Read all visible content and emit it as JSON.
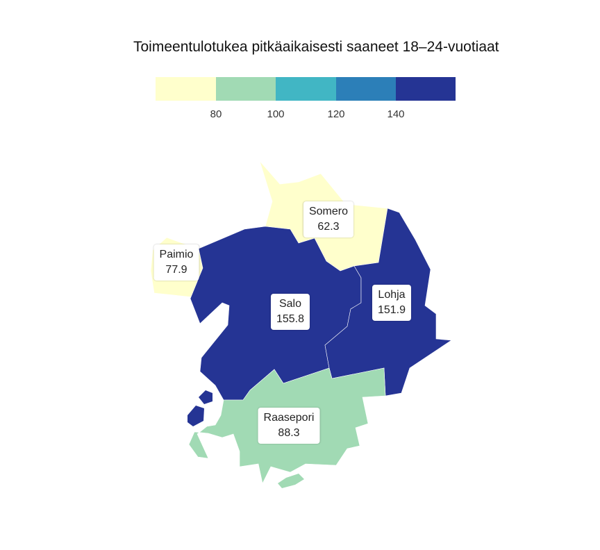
{
  "title": "Toimeentulotukea pitkäaikaisesti saaneet 18–24-vuotiaat",
  "legend": {
    "colors": [
      "#ffffcc",
      "#a1dab4",
      "#41b6c4",
      "#2c7fb8",
      "#253494"
    ],
    "breaks": [
      "80",
      "100",
      "120",
      "140"
    ]
  },
  "regions": [
    {
      "name": "Somero",
      "value": "62.3",
      "color": "#ffffcc"
    },
    {
      "name": "Paimio",
      "value": "77.9",
      "color": "#ffffcc"
    },
    {
      "name": "Salo",
      "value": "155.8",
      "color": "#253494"
    },
    {
      "name": "Lohja",
      "value": "151.9",
      "color": "#253494"
    },
    {
      "name": "Raasepori",
      "value": "88.3",
      "color": "#a1dab4"
    }
  ]
}
